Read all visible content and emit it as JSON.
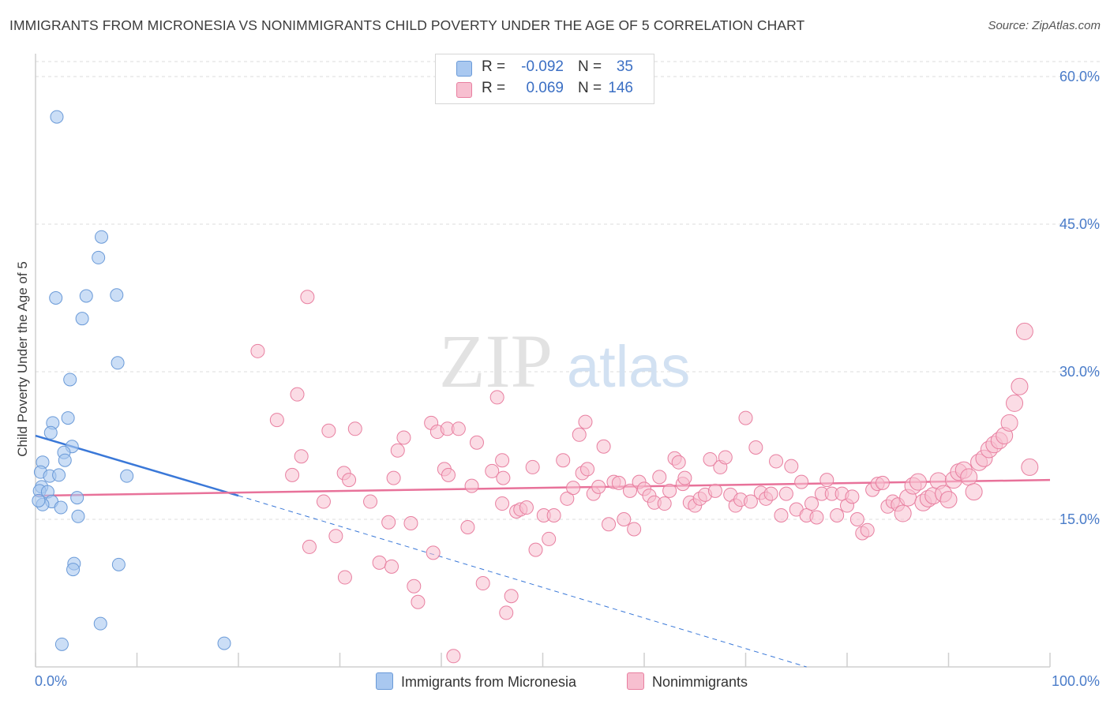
{
  "title": "IMMIGRANTS FROM MICRONESIA VS NONIMMIGRANTS CHILD POVERTY UNDER THE AGE OF 5 CORRELATION CHART",
  "source": "Source: ZipAtlas.com",
  "watermark": {
    "zip": "ZIP",
    "atlas": "atlas"
  },
  "legend": {
    "series1": {
      "r_label": "R =",
      "r_value": "-0.092",
      "n_label": "N =",
      "n_value": "35"
    },
    "series2": {
      "r_label": "R =",
      "r_value": "0.069",
      "n_label": "N =",
      "n_value": "146"
    }
  },
  "bottom_legend": {
    "series1": "Immigrants from Micronesia",
    "series2": "Nonimmigrants"
  },
  "colors": {
    "blue_fill": "#a9c8f0",
    "blue_stroke": "#6a9ad8",
    "blue_line": "#3a78d8",
    "pink_fill": "#f7bfd0",
    "pink_stroke": "#e87fa0",
    "pink_line": "#e8729a",
    "grid": "#dcdcdc",
    "axis": "#cfcfcf",
    "tick_text": "#4a7cc9"
  },
  "chart_data": {
    "type": "scatter",
    "title": "IMMIGRANTS FROM MICRONESIA VS NONIMMIGRANTS CHILD POVERTY UNDER THE AGE OF 5 CORRELATION CHART",
    "xlabel": "",
    "ylabel": "Child Poverty Under the Age of 5",
    "xlim": [
      0,
      100
    ],
    "ylim": [
      0,
      60
    ],
    "x_tick_labels": [
      "0.0%",
      "100.0%"
    ],
    "y_ticks": [
      15,
      30,
      45,
      60
    ],
    "y_tick_labels": [
      "15.0%",
      "30.0%",
      "45.0%",
      "60.0%"
    ],
    "series": [
      {
        "name": "Immigrants from Micronesia",
        "r": -0.092,
        "n": 35,
        "points": [
          [
            2.1,
            55.9
          ],
          [
            6.5,
            43.7
          ],
          [
            6.2,
            41.6
          ],
          [
            2.0,
            37.5
          ],
          [
            5.0,
            37.7
          ],
          [
            8.0,
            37.8
          ],
          [
            4.6,
            35.4
          ],
          [
            8.1,
            30.9
          ],
          [
            3.4,
            29.2
          ],
          [
            3.2,
            25.3
          ],
          [
            1.7,
            24.8
          ],
          [
            1.5,
            23.8
          ],
          [
            3.6,
            22.4
          ],
          [
            2.8,
            21.8
          ],
          [
            2.9,
            21.0
          ],
          [
            0.7,
            20.8
          ],
          [
            0.5,
            19.8
          ],
          [
            1.4,
            19.4
          ],
          [
            2.3,
            19.5
          ],
          [
            9.0,
            19.4
          ],
          [
            0.6,
            18.3
          ],
          [
            0.4,
            17.9
          ],
          [
            1.2,
            17.8
          ],
          [
            4.1,
            17.2
          ],
          [
            1.6,
            16.8
          ],
          [
            0.7,
            16.5
          ],
          [
            2.5,
            16.2
          ],
          [
            4.2,
            15.3
          ],
          [
            3.8,
            10.5
          ],
          [
            8.2,
            10.4
          ],
          [
            3.7,
            9.9
          ],
          [
            6.4,
            4.4
          ],
          [
            2.6,
            2.3
          ],
          [
            18.6,
            2.4
          ],
          [
            0.3,
            16.9
          ]
        ]
      },
      {
        "name": "Nonimmigrants",
        "r": 0.069,
        "n": 146,
        "points": [
          [
            26.8,
            37.6
          ],
          [
            21.9,
            32.1
          ],
          [
            25.8,
            27.7
          ],
          [
            23.8,
            25.1
          ],
          [
            26.2,
            21.4
          ],
          [
            25.3,
            19.5
          ],
          [
            28.4,
            16.8
          ],
          [
            28.9,
            24.0
          ],
          [
            31.5,
            24.2
          ],
          [
            30.4,
            19.7
          ],
          [
            30.9,
            19.0
          ],
          [
            27.0,
            12.2
          ],
          [
            29.6,
            13.3
          ],
          [
            30.5,
            9.1
          ],
          [
            33.0,
            16.8
          ],
          [
            33.9,
            10.6
          ],
          [
            35.1,
            10.2
          ],
          [
            34.8,
            14.7
          ],
          [
            35.7,
            22.0
          ],
          [
            36.3,
            23.3
          ],
          [
            35.3,
            19.2
          ],
          [
            37.0,
            14.6
          ],
          [
            37.3,
            8.2
          ],
          [
            37.7,
            6.6
          ],
          [
            39.2,
            11.6
          ],
          [
            39.0,
            24.8
          ],
          [
            39.6,
            23.9
          ],
          [
            40.6,
            24.2
          ],
          [
            41.7,
            24.2
          ],
          [
            40.3,
            20.1
          ],
          [
            40.7,
            19.5
          ],
          [
            42.6,
            14.2
          ],
          [
            43.0,
            18.4
          ],
          [
            43.5,
            22.8
          ],
          [
            44.1,
            8.5
          ],
          [
            45.0,
            19.9
          ],
          [
            45.5,
            27.4
          ],
          [
            46.0,
            21.0
          ],
          [
            46.1,
            19.2
          ],
          [
            46.0,
            16.6
          ],
          [
            46.4,
            5.5
          ],
          [
            46.9,
            7.2
          ],
          [
            47.4,
            15.8
          ],
          [
            47.8,
            16.0
          ],
          [
            48.4,
            16.2
          ],
          [
            49.0,
            20.3
          ],
          [
            49.3,
            11.9
          ],
          [
            50.1,
            15.4
          ],
          [
            50.6,
            13.0
          ],
          [
            51.1,
            15.4
          ],
          [
            52.0,
            21.0
          ],
          [
            52.4,
            17.1
          ],
          [
            53.0,
            18.2
          ],
          [
            53.6,
            23.6
          ],
          [
            53.9,
            19.7
          ],
          [
            54.2,
            24.9
          ],
          [
            54.4,
            20.1
          ],
          [
            55.0,
            17.6
          ],
          [
            55.5,
            18.3
          ],
          [
            56.0,
            22.4
          ],
          [
            56.5,
            14.5
          ],
          [
            57.0,
            18.8
          ],
          [
            57.5,
            18.7
          ],
          [
            58.0,
            15.0
          ],
          [
            58.6,
            17.9
          ],
          [
            59.0,
            14.0
          ],
          [
            59.5,
            18.8
          ],
          [
            60.0,
            18.1
          ],
          [
            60.5,
            17.4
          ],
          [
            61.0,
            16.7
          ],
          [
            61.5,
            19.3
          ],
          [
            62.0,
            16.6
          ],
          [
            62.5,
            17.9
          ],
          [
            63.0,
            21.2
          ],
          [
            63.4,
            20.8
          ],
          [
            63.8,
            18.6
          ],
          [
            64.0,
            19.2
          ],
          [
            64.5,
            16.7
          ],
          [
            65.0,
            16.4
          ],
          [
            65.5,
            17.1
          ],
          [
            66.0,
            17.5
          ],
          [
            66.5,
            21.1
          ],
          [
            67.0,
            17.9
          ],
          [
            67.5,
            20.3
          ],
          [
            68.0,
            21.3
          ],
          [
            68.5,
            17.5
          ],
          [
            69.0,
            16.4
          ],
          [
            69.5,
            17.0
          ],
          [
            70.0,
            25.3
          ],
          [
            70.5,
            16.8
          ],
          [
            71.0,
            22.3
          ],
          [
            71.5,
            17.7
          ],
          [
            72.0,
            17.1
          ],
          [
            72.5,
            17.6
          ],
          [
            73.0,
            20.9
          ],
          [
            73.5,
            15.4
          ],
          [
            74.0,
            17.6
          ],
          [
            74.5,
            20.4
          ],
          [
            75.0,
            16.0
          ],
          [
            75.5,
            18.8
          ],
          [
            76.0,
            15.4
          ],
          [
            76.5,
            16.6
          ],
          [
            77.0,
            15.2
          ],
          [
            77.5,
            17.6
          ],
          [
            78.0,
            19.0
          ],
          [
            78.5,
            17.6
          ],
          [
            79.0,
            15.4
          ],
          [
            79.5,
            17.6
          ],
          [
            80.0,
            16.4
          ],
          [
            80.5,
            17.3
          ],
          [
            81.0,
            15.0
          ],
          [
            81.5,
            13.6
          ],
          [
            82.0,
            13.9
          ],
          [
            82.5,
            18.0
          ],
          [
            83.0,
            18.6
          ],
          [
            83.5,
            18.7
          ],
          [
            84.0,
            16.3
          ],
          [
            84.5,
            16.8
          ],
          [
            85.0,
            16.5
          ],
          [
            85.5,
            15.6
          ],
          [
            86.0,
            17.2
          ],
          [
            86.5,
            18.4
          ],
          [
            87.0,
            18.8
          ],
          [
            87.5,
            16.7
          ],
          [
            88.0,
            17.1
          ],
          [
            88.5,
            17.4
          ],
          [
            89.0,
            18.9
          ],
          [
            89.5,
            17.6
          ],
          [
            90.0,
            17.0
          ],
          [
            90.5,
            19.0
          ],
          [
            91.0,
            19.8
          ],
          [
            91.5,
            20.0
          ],
          [
            92.0,
            19.3
          ],
          [
            92.5,
            17.8
          ],
          [
            93.0,
            20.8
          ],
          [
            93.5,
            21.2
          ],
          [
            94.0,
            22.1
          ],
          [
            94.5,
            22.6
          ],
          [
            95.0,
            23.0
          ],
          [
            95.5,
            23.5
          ],
          [
            96.0,
            24.8
          ],
          [
            96.5,
            26.8
          ],
          [
            97.0,
            28.5
          ],
          [
            97.5,
            34.1
          ],
          [
            98.0,
            20.3
          ],
          [
            41.2,
            1.1
          ]
        ]
      }
    ],
    "trend_lines": [
      {
        "series": "Immigrants from Micronesia",
        "solid_from": [
          0,
          23.5
        ],
        "solid_to": [
          20,
          17.4
        ],
        "dashed_to": [
          76,
          0
        ]
      },
      {
        "series": "Nonimmigrants",
        "from": [
          0,
          17.4
        ],
        "to": [
          100,
          19.0
        ]
      }
    ]
  }
}
